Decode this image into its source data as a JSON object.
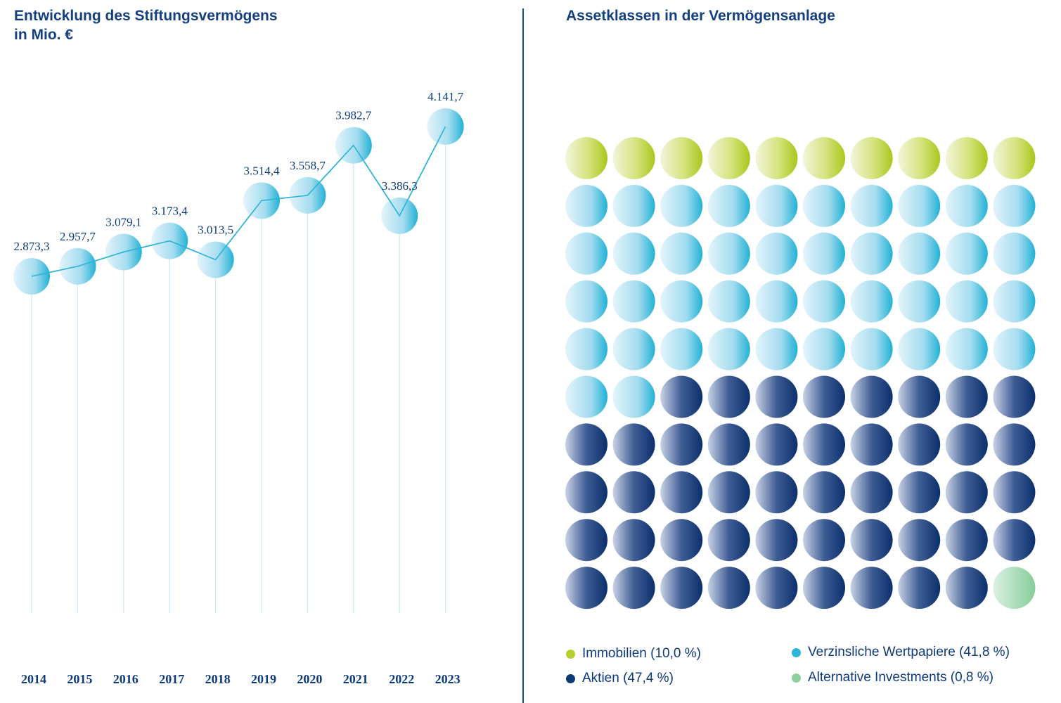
{
  "chart_data": [
    {
      "type": "line",
      "title": "Entwicklung des Stiftungsvermögens",
      "subtitle": "in Mio. €",
      "categories": [
        "2014",
        "2015",
        "2016",
        "2017",
        "2018",
        "2019",
        "2020",
        "2021",
        "2022",
        "2023"
      ],
      "values": [
        2873.3,
        2957.7,
        3079.1,
        3173.4,
        3013.5,
        3514.4,
        3558.7,
        3982.7,
        3386.3,
        4141.7
      ],
      "labels": [
        "2.873,3",
        "2.957,7",
        "3.079,1",
        "3.173,4",
        "3.013,5",
        "3.514,4",
        "3.558,7",
        "3.982,7",
        "3.386,3",
        "4.141,7"
      ],
      "xlabel": "",
      "ylabel": "",
      "ylim": [
        2700,
        4300
      ],
      "grid": false
    },
    {
      "type": "waffle",
      "title": "Assetklassen in der Vermögensanlage",
      "series": [
        {
          "name": "Immobilien",
          "label": "Immobilien (10,0 %)",
          "value": 10.0,
          "color": "#b7cf2c"
        },
        {
          "name": "Verzinsliche Wertpapiere",
          "label": "Verzinsliche Wertpapiere (41,8 %)",
          "value": 41.8,
          "color": "#29b7d9"
        },
        {
          "name": "Aktien",
          "label": "Aktien (47,4 %)",
          "value": 47.4,
          "color": "#0d3a74"
        },
        {
          "name": "Alternative Investments",
          "label": "Alternative Investments (0,8 %)",
          "value": 0.8,
          "color": "#8fd0a1"
        }
      ],
      "cell_counts": [
        10,
        42,
        47,
        1
      ],
      "grid_columns": 10,
      "grid_rows": 10
    }
  ]
}
